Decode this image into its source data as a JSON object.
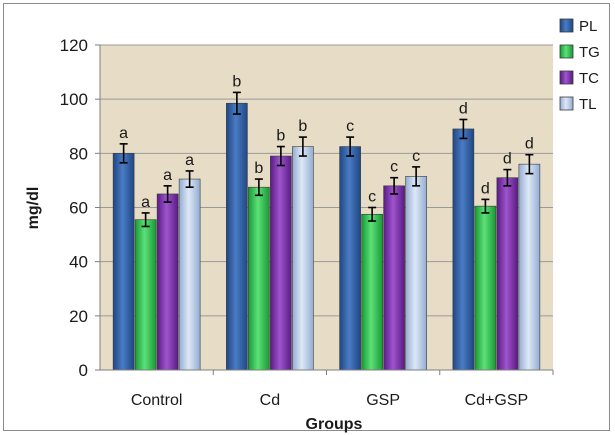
{
  "chart_data": {
    "type": "bar",
    "categories": [
      "Control",
      "Cd",
      "GSP",
      "Cd+GSP"
    ],
    "series": [
      {
        "name": "PL",
        "values": [
          80,
          98.5,
          82.5,
          89
        ],
        "errors": [
          3.5,
          4,
          3.5,
          3.5
        ],
        "labels": [
          "a",
          "b",
          "c",
          "d"
        ],
        "color": "#2e5c9e"
      },
      {
        "name": "TG",
        "values": [
          55.5,
          67.5,
          57.5,
          60.5
        ],
        "errors": [
          2.5,
          3,
          2.5,
          2.5
        ],
        "labels": [
          "a",
          "b",
          "c",
          "d"
        ],
        "color": "#2dbb4a"
      },
      {
        "name": "TC",
        "values": [
          65,
          79,
          68,
          71
        ],
        "errors": [
          3,
          3.5,
          3,
          3
        ],
        "labels": [
          "a",
          "b",
          "c",
          "d"
        ],
        "color": "#7a2fa8"
      },
      {
        "name": "TL",
        "values": [
          70.5,
          82.5,
          71.5,
          76
        ],
        "errors": [
          3,
          3.5,
          3.5,
          3.5
        ],
        "labels": [
          "a",
          "b",
          "c",
          "d"
        ],
        "color": "#b7cbe8"
      }
    ],
    "xlabel": "Groups",
    "ylabel": "mg/dl",
    "ylim": [
      0,
      120
    ],
    "yticks": [
      0,
      20,
      40,
      60,
      80,
      100,
      120
    ],
    "grid": true,
    "legend": "top-right",
    "plot_background": "#e7dcc6"
  }
}
